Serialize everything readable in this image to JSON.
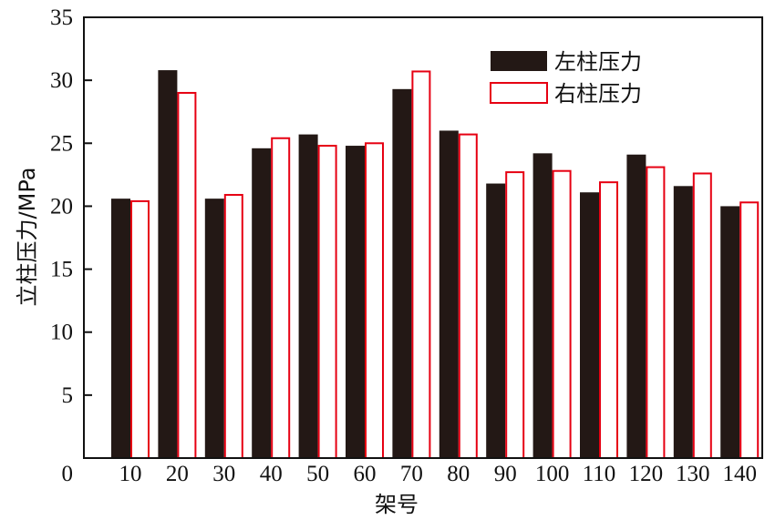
{
  "chart_data": {
    "type": "bar",
    "xlabel": "架号",
    "ylabel": "立柱压力/MPa",
    "ylim": [
      0,
      35
    ],
    "yticks": [
      0,
      5,
      10,
      15,
      20,
      25,
      30,
      35
    ],
    "categories": [
      "10",
      "20",
      "30",
      "40",
      "50",
      "60",
      "70",
      "80",
      "90",
      "100",
      "110",
      "120",
      "130",
      "140"
    ],
    "series": [
      {
        "name": "左柱压力",
        "color": "#231815",
        "values": [
          20.6,
          30.8,
          20.6,
          24.6,
          25.7,
          24.8,
          29.3,
          26.0,
          21.8,
          24.2,
          21.1,
          24.1,
          21.6,
          20.0
        ]
      },
      {
        "name": "右柱压力",
        "color": "#e60012",
        "values": [
          20.4,
          29.0,
          20.9,
          25.4,
          24.8,
          25.0,
          30.7,
          25.7,
          22.7,
          22.8,
          21.9,
          23.1,
          22.6,
          20.3
        ]
      }
    ],
    "grid": false,
    "legend_position": "top-right"
  }
}
